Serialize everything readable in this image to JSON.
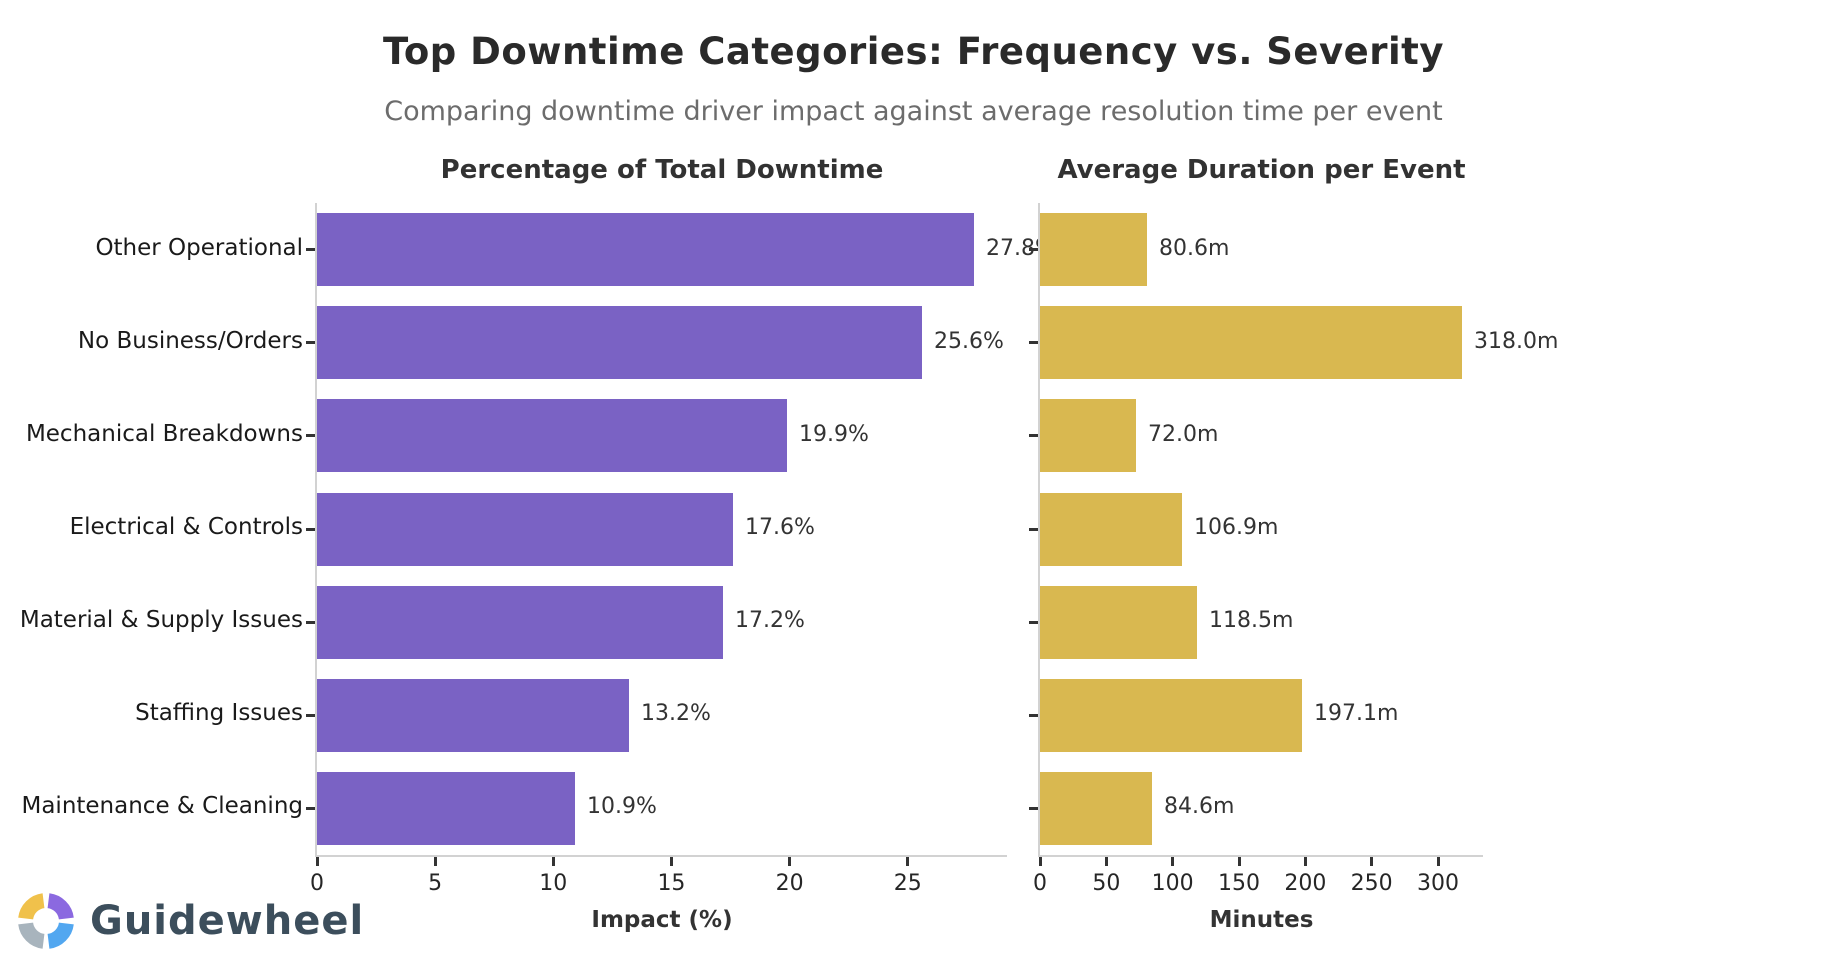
{
  "header": {
    "title": "Top Downtime Categories: Frequency vs. Severity",
    "subtitle": "Comparing downtime driver impact against average resolution time per event"
  },
  "logo": {
    "text": "Guidewheel",
    "ring_colors": {
      "top_left": "#f0c14b",
      "top_right": "#8b69e0",
      "bottom_right": "#52a7f0",
      "bottom_left": "#a8b4bd"
    },
    "text_color": "#3c4e5c"
  },
  "chart_data": [
    {
      "type": "bar",
      "orientation": "horizontal",
      "title": "Percentage of Total Downtime",
      "categories": [
        "Other Operational",
        "No Business/Orders",
        "Mechanical Breakdowns",
        "Electrical & Controls",
        "Material & Supply Issues",
        "Staffing Issues",
        "Maintenance & Cleaning"
      ],
      "values": [
        27.8,
        25.6,
        19.9,
        17.6,
        17.2,
        13.2,
        10.9
      ],
      "labels": [
        "27.8%",
        "25.6%",
        "19.9%",
        "17.6%",
        "17.2%",
        "13.2%",
        "10.9%"
      ],
      "xlabel": "Impact (%)",
      "xticks": [
        0,
        5,
        10,
        15,
        20,
        25
      ],
      "xtick_labels": [
        "0",
        "5",
        "10",
        "15",
        "20",
        "25"
      ],
      "xlim": [
        0,
        29.2
      ],
      "bar_color": "#7a62c4",
      "show_category_labels": true,
      "grid": false,
      "legend": null
    },
    {
      "type": "bar",
      "orientation": "horizontal",
      "title": "Average Duration per Event",
      "categories": [
        "Other Operational",
        "No Business/Orders",
        "Mechanical Breakdowns",
        "Electrical & Controls",
        "Material & Supply Issues",
        "Staffing Issues",
        "Maintenance & Cleaning"
      ],
      "values": [
        80.6,
        318.0,
        72.0,
        106.9,
        118.5,
        197.1,
        84.6
      ],
      "labels": [
        "80.6m",
        "318.0m",
        "72.0m",
        "106.9m",
        "118.5m",
        "197.1m",
        "84.6m"
      ],
      "xlabel": "Minutes",
      "xticks": [
        0,
        50,
        100,
        150,
        200,
        250,
        300
      ],
      "xtick_labels": [
        "0",
        "50",
        "100",
        "150",
        "200",
        "250",
        "300"
      ],
      "xlim": [
        0,
        333.9
      ],
      "bar_color": "#d9b850",
      "show_category_labels": false,
      "grid": false,
      "legend": null
    }
  ]
}
